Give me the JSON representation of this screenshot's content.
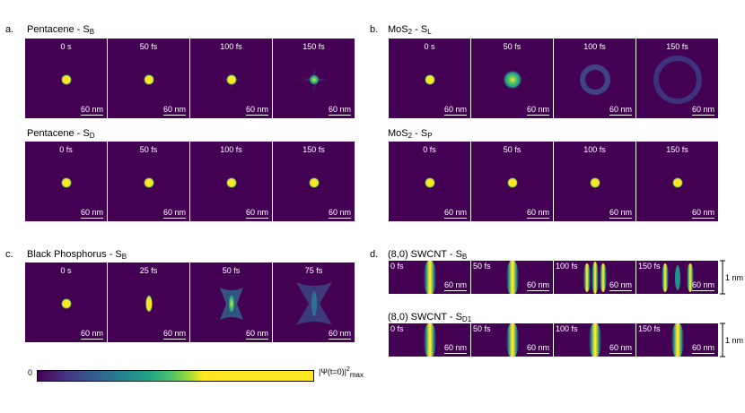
{
  "colors": {
    "background": "#440154",
    "peak": "#fde725"
  },
  "a": {
    "label": "a.",
    "rows": [
      {
        "title": "Pentacene - S",
        "sub": "B",
        "frames": [
          {
            "time": "0 s",
            "scale": "60 nm"
          },
          {
            "time": "50 fs",
            "scale": "60 nm"
          },
          {
            "time": "100 fs",
            "scale": "60 nm"
          },
          {
            "time": "150 fs",
            "scale": "60 nm"
          }
        ]
      },
      {
        "title": "Pentacene - S",
        "sub": "D",
        "frames": [
          {
            "time": "0 fs",
            "scale": "60 nm"
          },
          {
            "time": "50 fs",
            "scale": "60 nm"
          },
          {
            "time": "100 fs",
            "scale": "60 nm"
          },
          {
            "time": "150 fs",
            "scale": "60 nm"
          }
        ]
      }
    ]
  },
  "b": {
    "label": "b.",
    "rows": [
      {
        "title": "MoS",
        "title_sub": "2",
        "title_mid": " - S",
        "sub": "L",
        "frames": [
          {
            "time": "0 s",
            "scale": "60 nm"
          },
          {
            "time": "50 fs",
            "scale": "60 nm"
          },
          {
            "time": "100 fs",
            "scale": "60 nm"
          },
          {
            "time": "150 fs",
            "scale": "60 nm"
          }
        ]
      },
      {
        "title": "MoS",
        "title_sub": "2",
        "title_mid": " - S",
        "sub": "P",
        "frames": [
          {
            "time": "0 fs",
            "scale": "60 nm"
          },
          {
            "time": "50 fs",
            "scale": "60 nm"
          },
          {
            "time": "100 fs",
            "scale": "60 nm"
          },
          {
            "time": "150 fs",
            "scale": "60 nm"
          }
        ]
      }
    ]
  },
  "c": {
    "label": "c.",
    "rows": [
      {
        "title": "Black Phosphorus - S",
        "sub": "B",
        "frames": [
          {
            "time": "0 s",
            "scale": "60 nm"
          },
          {
            "time": "25 fs",
            "scale": "60 nm"
          },
          {
            "time": "50 fs",
            "scale": "60 nm"
          },
          {
            "time": "75 fs",
            "scale": "60 nm"
          }
        ]
      }
    ]
  },
  "d": {
    "label": "d.",
    "rows": [
      {
        "title": "(8,0) SWCNT - S",
        "sub": "B",
        "side_scale": "1 nm",
        "frames": [
          {
            "time": "0 fs",
            "scale": "60 nm"
          },
          {
            "time": "50 fs",
            "scale": "60 nm"
          },
          {
            "time": "100 fs",
            "scale": "60 nm"
          },
          {
            "time": "150 fs",
            "scale": "60 nm"
          }
        ]
      },
      {
        "title": "(8,0) SWCNT - S",
        "sub": "D1",
        "side_scale": "1 nm",
        "frames": [
          {
            "time": "0 fs",
            "scale": "60 nm"
          },
          {
            "time": "50 fs",
            "scale": "60 nm"
          },
          {
            "time": "100 fs",
            "scale": "60 nm"
          },
          {
            "time": "150 fs",
            "scale": "60 nm"
          }
        ]
      }
    ]
  },
  "colorbar": {
    "min": "0",
    "max": "|Ψ(t=0)|",
    "max_sup": "2",
    "max_sub": "max"
  }
}
